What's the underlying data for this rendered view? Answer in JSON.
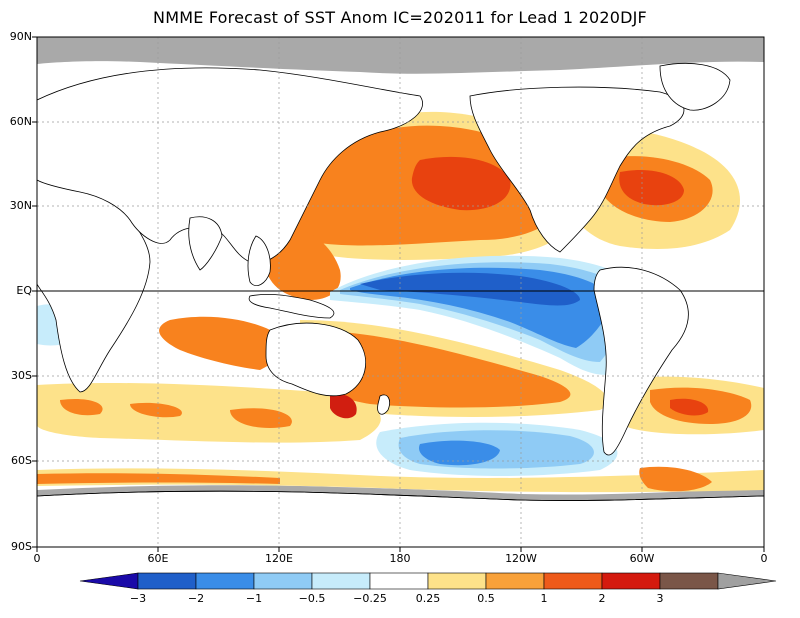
{
  "title": "NMME Forecast of SST Anom IC=202011 for Lead 1 2020DJF",
  "lat_labels": [
    "90N",
    "60N",
    "30N",
    "EQ",
    "30S",
    "60S",
    "90S"
  ],
  "lon_labels": [
    "0",
    "60E",
    "120E",
    "180",
    "120W",
    "60W",
    "0"
  ],
  "colorbar": {
    "labels": [
      "−3",
      "−2",
      "−1",
      "−0.5",
      "−0.25",
      "0.25",
      "0.5",
      "1",
      "2",
      "3"
    ],
    "colors": [
      "#1a0aa8",
      "#1f5fc9",
      "#3a8de8",
      "#8fcbf5",
      "#c7ecfb",
      "#ffffff",
      "#fde28a",
      "#f8a13a",
      "#ee5a1a",
      "#d41a0e",
      "#7a5648",
      "#a0a0a0"
    ]
  },
  "colors": {
    "land": "#ffffff",
    "ice": "#a9a9a9",
    "warm_light": "#fde28a",
    "warm_mid": "#f8821e",
    "warm_strong": "#e8420f",
    "warm_max": "#d11e10",
    "cool_light": "#c7ecfb",
    "cool_mid": "#8fcbf5",
    "cool_strong": "#3a8de8",
    "cool_max": "#1f5fc9"
  }
}
